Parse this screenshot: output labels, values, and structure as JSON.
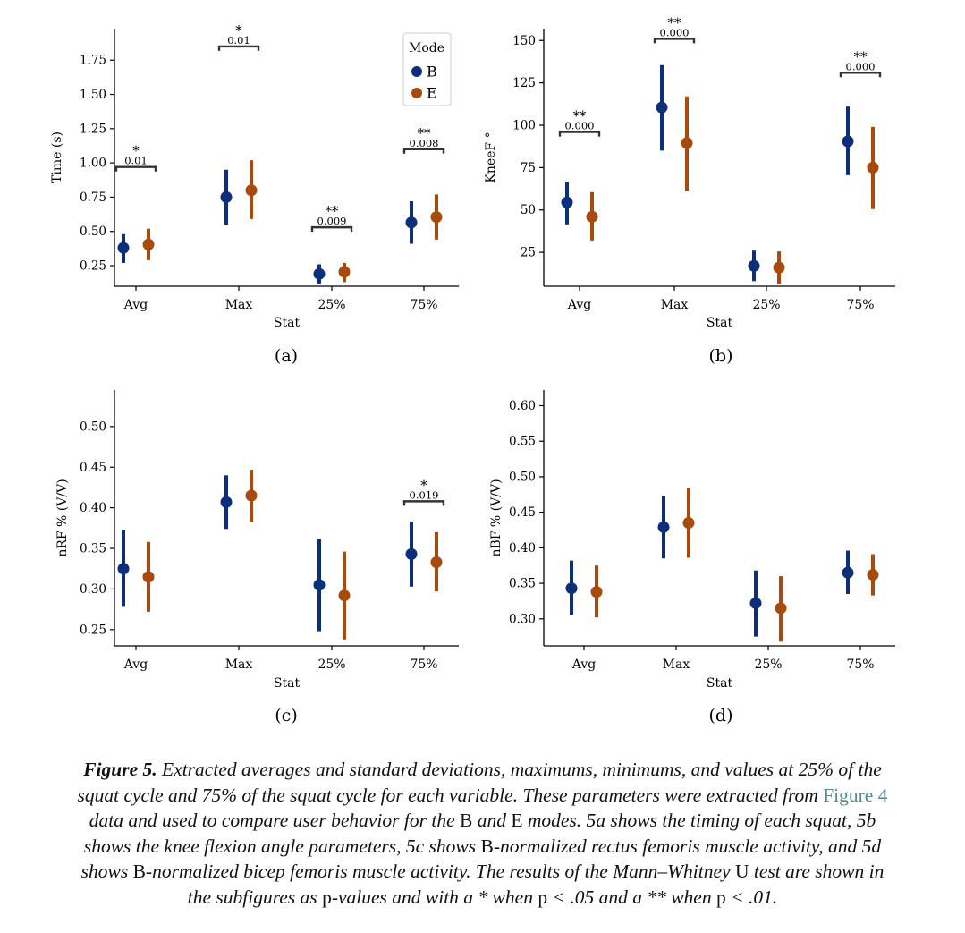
{
  "legend": {
    "title": "Mode",
    "entries": [
      {
        "label": "B",
        "color": "#0b2f7a"
      },
      {
        "label": "E",
        "color": "#a84a0c"
      }
    ]
  },
  "chart_data": [
    {
      "type": "scatter",
      "panel_label": "(a)",
      "xlabel": "Stat",
      "ylabel": "Time (s)",
      "categories": [
        "Avg",
        "Max",
        "25%",
        "75%"
      ],
      "yticks": [
        "0.25",
        "0.50",
        "0.75",
        "1.00",
        "1.25",
        "1.50",
        "1.75"
      ],
      "ylim": [
        0.1,
        1.98
      ],
      "series": [
        {
          "name": "B",
          "color": "#0b2f7a",
          "values": [
            0.38,
            0.75,
            0.19,
            0.565
          ],
          "lower": [
            0.27,
            0.55,
            0.12,
            0.41
          ],
          "upper": [
            0.48,
            0.95,
            0.26,
            0.72
          ]
        },
        {
          "name": "E",
          "color": "#a84a0c",
          "values": [
            0.405,
            0.8,
            0.205,
            0.605
          ],
          "lower": [
            0.29,
            0.59,
            0.13,
            0.44
          ],
          "upper": [
            0.52,
            1.02,
            0.27,
            0.77
          ]
        }
      ],
      "annotations": [
        {
          "category": "Avg",
          "stars": "*",
          "p": "0.01",
          "y": 0.97
        },
        {
          "category": "Max",
          "stars": "*",
          "p": "0.01",
          "y": 1.85
        },
        {
          "category": "25%",
          "stars": "**",
          "p": "0.009",
          "y": 0.53
        },
        {
          "category": "75%",
          "stars": "**",
          "p": "0.008",
          "y": 1.1
        }
      ],
      "show_legend": true,
      "legend_placement": "top-right"
    },
    {
      "type": "scatter",
      "panel_label": "(b)",
      "xlabel": "Stat",
      "ylabel": "KneeF °",
      "categories": [
        "Avg",
        "Max",
        "25%",
        "75%"
      ],
      "yticks": [
        "25",
        "50",
        "75",
        "100",
        "125",
        "150"
      ],
      "ylim": [
        5,
        157
      ],
      "series": [
        {
          "name": "B",
          "color": "#0b2f7a",
          "values": [
            54.5,
            110.5,
            17.0,
            90.5
          ],
          "lower": [
            41.5,
            85.0,
            8.0,
            70.5
          ],
          "upper": [
            66.5,
            135.5,
            26.0,
            111.0
          ]
        },
        {
          "name": "E",
          "color": "#a84a0c",
          "values": [
            46.0,
            89.5,
            16.0,
            75.0
          ],
          "lower": [
            32.0,
            61.5,
            6.5,
            50.5
          ],
          "upper": [
            60.5,
            117.0,
            25.5,
            99.0
          ]
        }
      ],
      "annotations": [
        {
          "category": "Avg",
          "stars": "**",
          "p": "0.000",
          "y": 96
        },
        {
          "category": "Max",
          "stars": "**",
          "p": "0.000",
          "y": 151
        },
        {
          "category": "75%",
          "stars": "**",
          "p": "0.000",
          "y": 131
        }
      ],
      "show_legend": false
    },
    {
      "type": "scatter",
      "panel_label": "(c)",
      "xlabel": "Stat",
      "ylabel": "nRF % (V/V)",
      "categories": [
        "Avg",
        "Max",
        "25%",
        "75%"
      ],
      "yticks": [
        "0.25",
        "0.30",
        "0.35",
        "0.40",
        "0.45",
        "0.50"
      ],
      "ylim": [
        0.23,
        0.545
      ],
      "series": [
        {
          "name": "B",
          "color": "#0b2f7a",
          "values": [
            0.325,
            0.407,
            0.305,
            0.343
          ],
          "lower": [
            0.278,
            0.374,
            0.248,
            0.303
          ],
          "upper": [
            0.373,
            0.44,
            0.361,
            0.383
          ]
        },
        {
          "name": "E",
          "color": "#a84a0c",
          "values": [
            0.315,
            0.415,
            0.292,
            0.333
          ],
          "lower": [
            0.272,
            0.382,
            0.238,
            0.297
          ],
          "upper": [
            0.358,
            0.447,
            0.346,
            0.37
          ]
        }
      ],
      "annotations": [
        {
          "category": "75%",
          "stars": "*",
          "p": "0.019",
          "y": 0.408
        }
      ],
      "show_legend": false
    },
    {
      "type": "scatter",
      "panel_label": "(d)",
      "xlabel": "Stat",
      "ylabel": "nBF % (V/V)",
      "categories": [
        "Avg",
        "Max",
        "25%",
        "75%"
      ],
      "yticks": [
        "0.30",
        "0.35",
        "0.40",
        "0.45",
        "0.50",
        "0.55",
        "0.60"
      ],
      "ylim": [
        0.262,
        0.622
      ],
      "series": [
        {
          "name": "B",
          "color": "#0b2f7a",
          "values": [
            0.343,
            0.429,
            0.322,
            0.365
          ],
          "lower": [
            0.305,
            0.385,
            0.275,
            0.335
          ],
          "upper": [
            0.382,
            0.473,
            0.368,
            0.396
          ]
        },
        {
          "name": "E",
          "color": "#a84a0c",
          "values": [
            0.338,
            0.435,
            0.315,
            0.362
          ],
          "lower": [
            0.302,
            0.386,
            0.268,
            0.333
          ],
          "upper": [
            0.375,
            0.484,
            0.36,
            0.391
          ]
        }
      ],
      "annotations": [],
      "show_legend": false
    }
  ],
  "caption": {
    "label": "Figure 5.",
    "lines": [
      [
        {
          "t": "Figure 5.",
          "s": "lbl"
        },
        {
          "t": " Extracted averages and standard deviations, maximums, minimums, and values at 25% of the"
        }
      ],
      [
        {
          "t": "squat cycle and 75% of the squat cycle for each variable. These parameters were extracted from "
        },
        {
          "t": "Figure 4",
          "s": "lnk"
        }
      ],
      [
        {
          "t": "data and used to compare user behavior for the "
        },
        {
          "t": "B",
          "s": "up"
        },
        {
          "t": " and "
        },
        {
          "t": "E",
          "s": "up"
        },
        {
          "t": " modes. 5a shows the timing of each squat, 5b"
        }
      ],
      [
        {
          "t": "shows the knee flexion angle parameters, 5c shows "
        },
        {
          "t": "B",
          "s": "up"
        },
        {
          "t": "-normalized rectus femoris muscle activity, and 5d"
        }
      ],
      [
        {
          "t": "shows "
        },
        {
          "t": "B",
          "s": "up"
        },
        {
          "t": "-normalized bicep femoris muscle activity. The results of the Mann–Whitney "
        },
        {
          "t": "U",
          "s": "up"
        },
        {
          "t": " test are shown in"
        }
      ],
      [
        {
          "t": "the subfigures as "
        },
        {
          "t": "p",
          "s": "up"
        },
        {
          "t": "-values and with a * when "
        },
        {
          "t": "p",
          "s": "up"
        },
        {
          "t": " < .05 and a ** when "
        },
        {
          "t": "p",
          "s": "up"
        },
        {
          "t": " < .01."
        }
      ]
    ]
  }
}
